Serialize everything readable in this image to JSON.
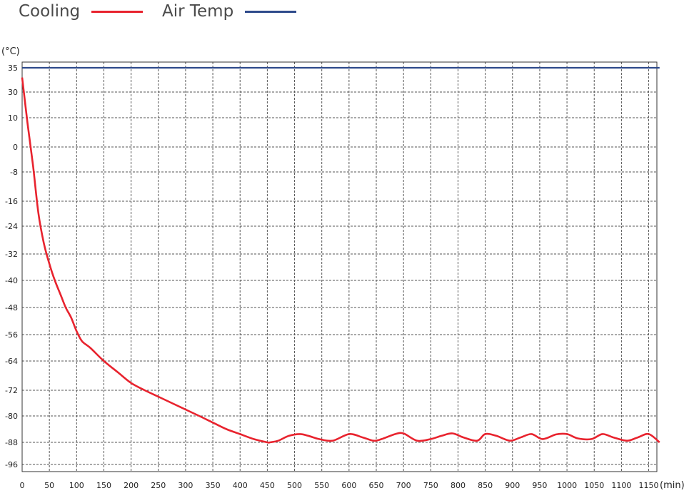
{
  "chart_data": {
    "type": "line",
    "title": "",
    "xlabel": "(min)",
    "ylabel": "(°C)",
    "xlim": [
      0,
      1170
    ],
    "ylim": [
      -100,
      35
    ],
    "grid": true,
    "legend_position": "top-left",
    "x_ticks": [
      0,
      50,
      100,
      150,
      200,
      250,
      300,
      350,
      400,
      450,
      500,
      550,
      600,
      650,
      700,
      750,
      800,
      850,
      900,
      950,
      1000,
      1050,
      1100,
      1150
    ],
    "y_ticks": [
      35,
      30,
      10,
      0,
      -8,
      -16,
      -24,
      -32,
      -40,
      -48,
      -56,
      -64,
      -72,
      -80,
      -88,
      -96
    ],
    "series": [
      {
        "name": "Cooling",
        "color": "#e8232e",
        "x": [
          0,
          10,
          20,
          30,
          40,
          50,
          60,
          70,
          80,
          90,
          100,
          110,
          125,
          150,
          175,
          200,
          225,
          250,
          275,
          300,
          325,
          350,
          375,
          400,
          425,
          450,
          455,
          470,
          490,
          510,
          525,
          545,
          570,
          600,
          625,
          645,
          660,
          685,
          700,
          725,
          750,
          770,
          790,
          810,
          835,
          850,
          870,
          895,
          915,
          935,
          955,
          980,
          1000,
          1020,
          1045,
          1065,
          1085,
          1110,
          1130,
          1150,
          1170
        ],
        "y": [
          33,
          8,
          -6,
          -20,
          -29,
          -35,
          -40,
          -44,
          -48,
          -51,
          -55,
          -58,
          -60,
          -64,
          -67,
          -70,
          -72,
          -74,
          -76,
          -78,
          -80,
          -82,
          -84,
          -85.5,
          -87,
          -88,
          -88,
          -87.5,
          -86,
          -85.5,
          -86,
          -87,
          -87.5,
          -85.5,
          -86.5,
          -87.5,
          -87,
          -85.5,
          -85.3,
          -87.5,
          -87,
          -86,
          -85.3,
          -86.5,
          -87.5,
          -85.5,
          -86,
          -87.5,
          -86.5,
          -85.5,
          -87,
          -85.6,
          -85.5,
          -86.8,
          -87,
          -85.5,
          -86.5,
          -87.5,
          -86.5,
          -85.5,
          -88
        ]
      },
      {
        "name": "Air Temp",
        "color": "#2e4a8b",
        "x": [
          0,
          1170
        ],
        "y": [
          35,
          35
        ]
      }
    ]
  }
}
